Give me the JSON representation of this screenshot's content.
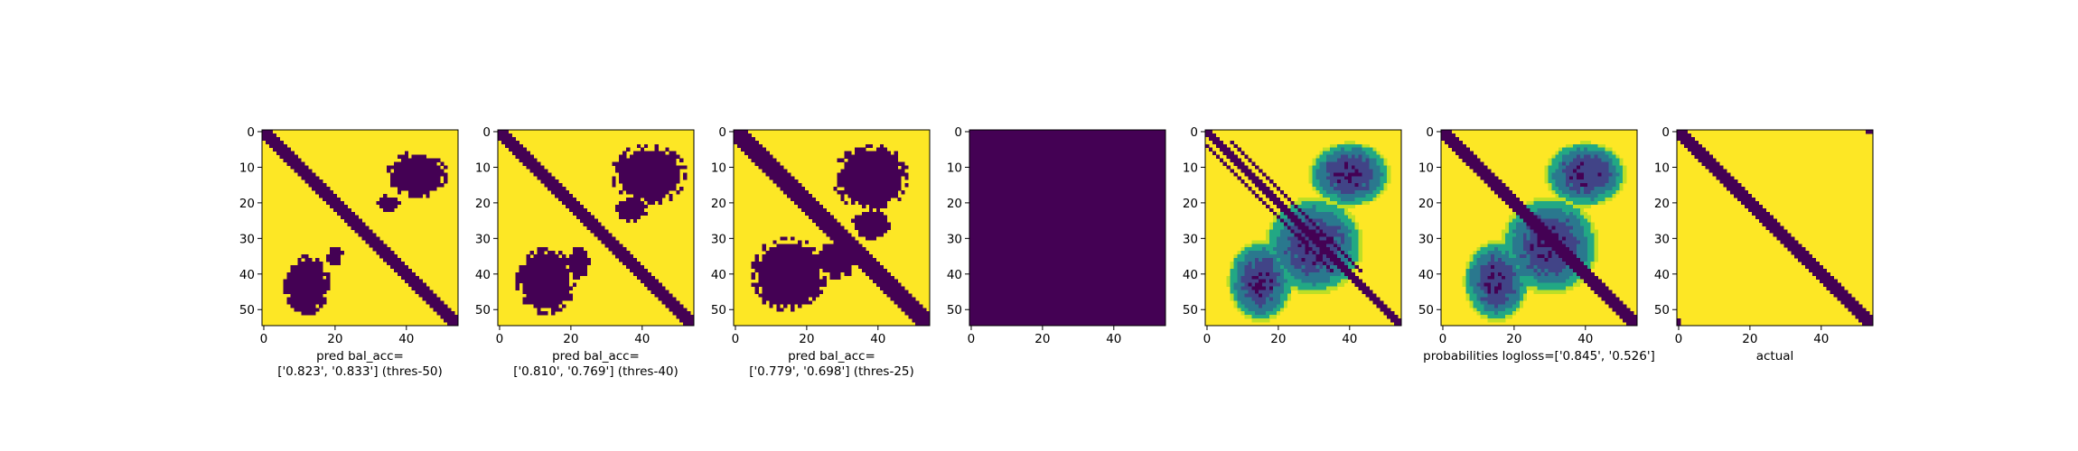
{
  "colors": {
    "yellow": "#fde725",
    "purple": "#440154",
    "lightgreen": "#bddf26",
    "green": "#22a884",
    "teal": "#2a788e",
    "darkblue": "#414487"
  },
  "chart_data": [
    {
      "type": "heatmap",
      "title": "",
      "grid_size": 55,
      "x_ticks": [
        0,
        20,
        40
      ],
      "y_ticks": [
        0,
        10,
        20,
        30,
        40,
        50
      ],
      "caption_lines": [
        "pred bal_acc=",
        "['0.823', '0.833'] (thres-50)"
      ],
      "pattern": "binary",
      "diag_width": 2,
      "extra_diag_offsets": [],
      "blobs": [
        {
          "cx": 43,
          "cy": 12,
          "rx": 8,
          "ry": 6
        },
        {
          "cx": 35,
          "cy": 20,
          "rx": 3,
          "ry": 2
        },
        {
          "cx": 12,
          "cy": 43,
          "rx": 6,
          "ry": 8
        },
        {
          "cx": 20,
          "cy": 35,
          "rx": 2,
          "ry": 3
        }
      ],
      "fill_all": false
    },
    {
      "type": "heatmap",
      "title": "",
      "grid_size": 55,
      "x_ticks": [
        0,
        20,
        40
      ],
      "y_ticks": [
        0,
        10,
        20,
        30,
        40,
        50
      ],
      "caption_lines": [
        "pred bal_acc=",
        "['0.810', '0.769'] (thres-40)"
      ],
      "pattern": "binary",
      "diag_width": 2.5,
      "extra_diag_offsets": [],
      "blobs": [
        {
          "cx": 42,
          "cy": 12,
          "rx": 10,
          "ry": 8
        },
        {
          "cx": 37,
          "cy": 22,
          "rx": 4,
          "ry": 3
        },
        {
          "cx": 13,
          "cy": 42,
          "rx": 8,
          "ry": 9
        },
        {
          "cx": 22,
          "cy": 37,
          "rx": 3,
          "ry": 4
        }
      ],
      "fill_all": false
    },
    {
      "type": "heatmap",
      "title": "",
      "grid_size": 55,
      "x_ticks": [
        0,
        20,
        40
      ],
      "y_ticks": [
        0,
        10,
        20,
        30,
        40,
        50
      ],
      "caption_lines": [
        "pred bal_acc=",
        "['0.779', '0.698'] (thres-25)"
      ],
      "pattern": "binary",
      "diag_width": 3,
      "extra_diag_offsets": [],
      "blobs": [
        {
          "cx": 38,
          "cy": 13,
          "rx": 10,
          "ry": 9
        },
        {
          "cx": 38,
          "cy": 26,
          "rx": 5,
          "ry": 4
        },
        {
          "cx": 15,
          "cy": 40,
          "rx": 10,
          "ry": 10
        },
        {
          "cx": 28,
          "cy": 36,
          "rx": 6,
          "ry": 5
        }
      ],
      "fill_all": false
    },
    {
      "type": "heatmap",
      "title": "",
      "grid_size": 55,
      "x_ticks": [
        0,
        20,
        40
      ],
      "y_ticks": [
        0,
        10,
        20,
        30,
        40,
        50
      ],
      "caption_lines": [],
      "pattern": "solid",
      "diag_width": 0,
      "extra_diag_offsets": [],
      "blobs": [],
      "fill_all": true
    },
    {
      "type": "heatmap",
      "title": "",
      "grid_size": 55,
      "x_ticks": [
        0,
        20,
        40
      ],
      "y_ticks": [
        0,
        10,
        20,
        30,
        40,
        50
      ],
      "caption_lines": [],
      "pattern": "probability",
      "diag_width": 1,
      "extra_diag_offsets": [
        -4,
        4
      ],
      "blobs": [
        {
          "cx": 40,
          "cy": 12,
          "rx": 10,
          "ry": 8
        },
        {
          "cx": 15,
          "cy": 42,
          "rx": 8,
          "ry": 10
        },
        {
          "cx": 30,
          "cy": 32,
          "rx": 12,
          "ry": 12
        }
      ],
      "fill_all": false
    },
    {
      "type": "heatmap",
      "title": "",
      "grid_size": 55,
      "x_ticks": [
        0,
        20,
        40
      ],
      "y_ticks": [
        0,
        10,
        20,
        30,
        40,
        50
      ],
      "caption_lines": [
        "probabilities logloss=['0.845', '0.526']"
      ],
      "pattern": "probability",
      "diag_width": 2.5,
      "extra_diag_offsets": [],
      "blobs": [
        {
          "cx": 40,
          "cy": 12,
          "rx": 10,
          "ry": 8
        },
        {
          "cx": 15,
          "cy": 42,
          "rx": 8,
          "ry": 10
        },
        {
          "cx": 30,
          "cy": 32,
          "rx": 12,
          "ry": 12
        }
      ],
      "fill_all": false
    },
    {
      "type": "heatmap",
      "title": "",
      "grid_size": 55,
      "x_ticks": [
        0,
        20,
        40
      ],
      "y_ticks": [
        0,
        10,
        20,
        30,
        40,
        50
      ],
      "caption_lines": [
        "actual"
      ],
      "pattern": "binary",
      "diag_width": 2,
      "extra_diag_offsets": [],
      "blobs": [],
      "fill_all": false,
      "corner_marks": true
    }
  ]
}
